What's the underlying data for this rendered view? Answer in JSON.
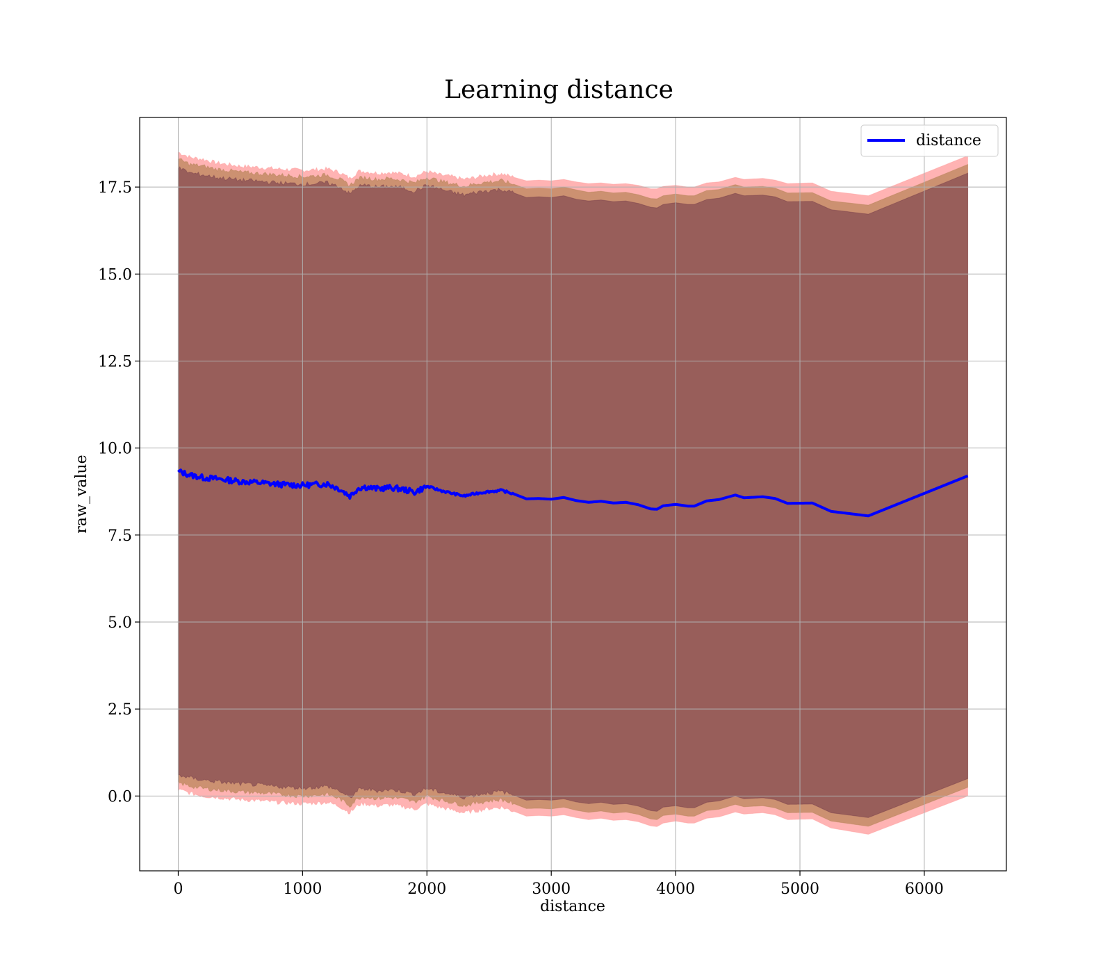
{
  "chart_data": {
    "type": "line",
    "title": "Learning distance",
    "xlabel": "distance",
    "ylabel": "raw_value",
    "xlim": [
      -310,
      6660
    ],
    "ylim": [
      -2.15,
      19.5
    ],
    "xticks": [
      0,
      1000,
      2000,
      3000,
      4000,
      5000,
      6000
    ],
    "yticks": [
      0.0,
      2.5,
      5.0,
      7.5,
      10.0,
      12.5,
      15.0,
      17.5
    ],
    "xtick_labels": [
      "0",
      "1000",
      "2000",
      "3000",
      "4000",
      "5000",
      "6000"
    ],
    "ytick_labels": [
      "0.0",
      "2.5",
      "5.0",
      "7.5",
      "10.0",
      "12.5",
      "15.0",
      "17.5"
    ],
    "grid": true,
    "legend": {
      "position": "top-right",
      "entries": [
        "distance"
      ]
    },
    "colors": {
      "line": "#0000ff",
      "band_outer": "#ff9999",
      "band_middle": "#b0804f",
      "band_inner": "#6e3447"
    },
    "series": [
      {
        "name": "distance",
        "x": [
          0,
          100,
          200,
          300,
          400,
          500,
          600,
          700,
          800,
          900,
          1000,
          1100,
          1200,
          1300,
          1380,
          1450,
          1500,
          1600,
          1700,
          1800,
          1900,
          2000,
          2100,
          2200,
          2300,
          2400,
          2500,
          2600,
          2700,
          2800,
          2900,
          3000,
          3100,
          3200,
          3300,
          3400,
          3500,
          3600,
          3700,
          3800,
          3850,
          3900,
          4000,
          4100,
          4150,
          4250,
          4350,
          4480,
          4550,
          4700,
          4800,
          4900,
          5100,
          5250,
          5550,
          6350
        ],
        "y": [
          9.33,
          9.22,
          9.15,
          9.12,
          9.08,
          9.04,
          9.02,
          8.99,
          8.96,
          8.94,
          8.93,
          8.95,
          8.97,
          8.82,
          8.62,
          8.85,
          8.88,
          8.83,
          8.86,
          8.82,
          8.73,
          8.9,
          8.79,
          8.7,
          8.62,
          8.7,
          8.75,
          8.78,
          8.68,
          8.54,
          8.55,
          8.53,
          8.58,
          8.49,
          8.44,
          8.47,
          8.42,
          8.44,
          8.37,
          8.25,
          8.24,
          8.34,
          8.38,
          8.33,
          8.33,
          8.48,
          8.52,
          8.65,
          8.57,
          8.6,
          8.55,
          8.41,
          8.42,
          8.18,
          8.05,
          9.2
        ],
        "band_outer_upper": [
          18.5,
          18.35,
          18.3,
          18.2,
          18.15,
          18.1,
          18.08,
          18.05,
          18.02,
          18.0,
          17.98,
          18.0,
          18.02,
          17.92,
          17.75,
          17.95,
          17.95,
          17.9,
          17.92,
          17.88,
          17.8,
          17.95,
          17.85,
          17.8,
          17.72,
          17.78,
          17.85,
          17.88,
          17.78,
          17.68,
          17.7,
          17.68,
          17.72,
          17.65,
          17.6,
          17.62,
          17.58,
          17.6,
          17.55,
          17.45,
          17.45,
          17.52,
          17.55,
          17.5,
          17.5,
          17.62,
          17.65,
          17.78,
          17.72,
          17.75,
          17.7,
          17.6,
          17.62,
          17.38,
          17.25,
          18.4
        ],
        "band_outer_lower": [
          0.18,
          0.08,
          0.0,
          -0.03,
          -0.07,
          -0.1,
          -0.12,
          -0.15,
          -0.18,
          -0.2,
          -0.22,
          -0.2,
          -0.18,
          -0.3,
          -0.48,
          -0.25,
          -0.22,
          -0.28,
          -0.25,
          -0.3,
          -0.38,
          -0.22,
          -0.32,
          -0.4,
          -0.48,
          -0.42,
          -0.36,
          -0.32,
          -0.44,
          -0.58,
          -0.56,
          -0.58,
          -0.54,
          -0.62,
          -0.68,
          -0.64,
          -0.7,
          -0.68,
          -0.74,
          -0.86,
          -0.88,
          -0.78,
          -0.72,
          -0.78,
          -0.78,
          -0.64,
          -0.6,
          -0.46,
          -0.52,
          -0.48,
          -0.54,
          -0.68,
          -0.66,
          -0.92,
          -1.1,
          0.0
        ],
        "band_middle_upper": [
          18.3,
          18.15,
          18.1,
          18.02,
          17.98,
          17.93,
          17.9,
          17.88,
          17.85,
          17.83,
          17.8,
          17.82,
          17.85,
          17.72,
          17.55,
          17.75,
          17.77,
          17.72,
          17.75,
          17.7,
          17.62,
          17.78,
          17.68,
          17.6,
          17.52,
          17.6,
          17.65,
          17.68,
          17.58,
          17.45,
          17.47,
          17.45,
          17.5,
          17.42,
          17.35,
          17.38,
          17.33,
          17.35,
          17.28,
          17.17,
          17.16,
          17.25,
          17.3,
          17.25,
          17.25,
          17.4,
          17.43,
          17.57,
          17.5,
          17.52,
          17.47,
          17.33,
          17.34,
          17.1,
          16.98,
          18.15
        ],
        "band_middle_lower": [
          0.38,
          0.28,
          0.22,
          0.18,
          0.15,
          0.12,
          0.1,
          0.08,
          0.05,
          0.02,
          0.0,
          0.02,
          0.05,
          -0.08,
          -0.28,
          -0.05,
          -0.02,
          -0.07,
          -0.04,
          -0.08,
          -0.17,
          0.0,
          -0.1,
          -0.18,
          -0.27,
          -0.2,
          -0.14,
          -0.1,
          -0.22,
          -0.36,
          -0.35,
          -0.37,
          -0.32,
          -0.41,
          -0.47,
          -0.43,
          -0.49,
          -0.46,
          -0.53,
          -0.66,
          -0.68,
          -0.56,
          -0.52,
          -0.58,
          -0.58,
          -0.42,
          -0.38,
          -0.24,
          -0.31,
          -0.28,
          -0.34,
          -0.48,
          -0.47,
          -0.72,
          -0.87,
          0.25
        ],
        "band_inner_upper": [
          18.05,
          17.9,
          17.85,
          17.78,
          17.74,
          17.7,
          17.68,
          17.65,
          17.62,
          17.6,
          17.58,
          17.6,
          17.62,
          17.5,
          17.3,
          17.52,
          17.55,
          17.5,
          17.52,
          17.48,
          17.38,
          17.55,
          17.45,
          17.35,
          17.27,
          17.35,
          17.4,
          17.43,
          17.33,
          17.2,
          17.22,
          17.2,
          17.25,
          17.15,
          17.1,
          17.13,
          17.08,
          17.1,
          17.03,
          16.92,
          16.9,
          17.0,
          17.05,
          17.0,
          17.0,
          17.14,
          17.18,
          17.32,
          17.25,
          17.27,
          17.22,
          17.08,
          17.09,
          16.85,
          16.72,
          17.9
        ],
        "band_inner_lower": [
          0.6,
          0.52,
          0.46,
          0.42,
          0.38,
          0.35,
          0.33,
          0.3,
          0.27,
          0.25,
          0.23,
          0.25,
          0.28,
          0.14,
          -0.06,
          0.18,
          0.2,
          0.15,
          0.18,
          0.14,
          0.05,
          0.22,
          0.12,
          0.04,
          -0.04,
          0.04,
          0.09,
          0.13,
          0.02,
          -0.12,
          -0.1,
          -0.12,
          -0.08,
          -0.17,
          -0.22,
          -0.18,
          -0.24,
          -0.22,
          -0.29,
          -0.42,
          -0.44,
          -0.32,
          -0.28,
          -0.34,
          -0.34,
          -0.18,
          -0.14,
          0.0,
          -0.08,
          -0.05,
          -0.1,
          -0.24,
          -0.23,
          -0.48,
          -0.62,
          0.5
        ]
      }
    ]
  }
}
